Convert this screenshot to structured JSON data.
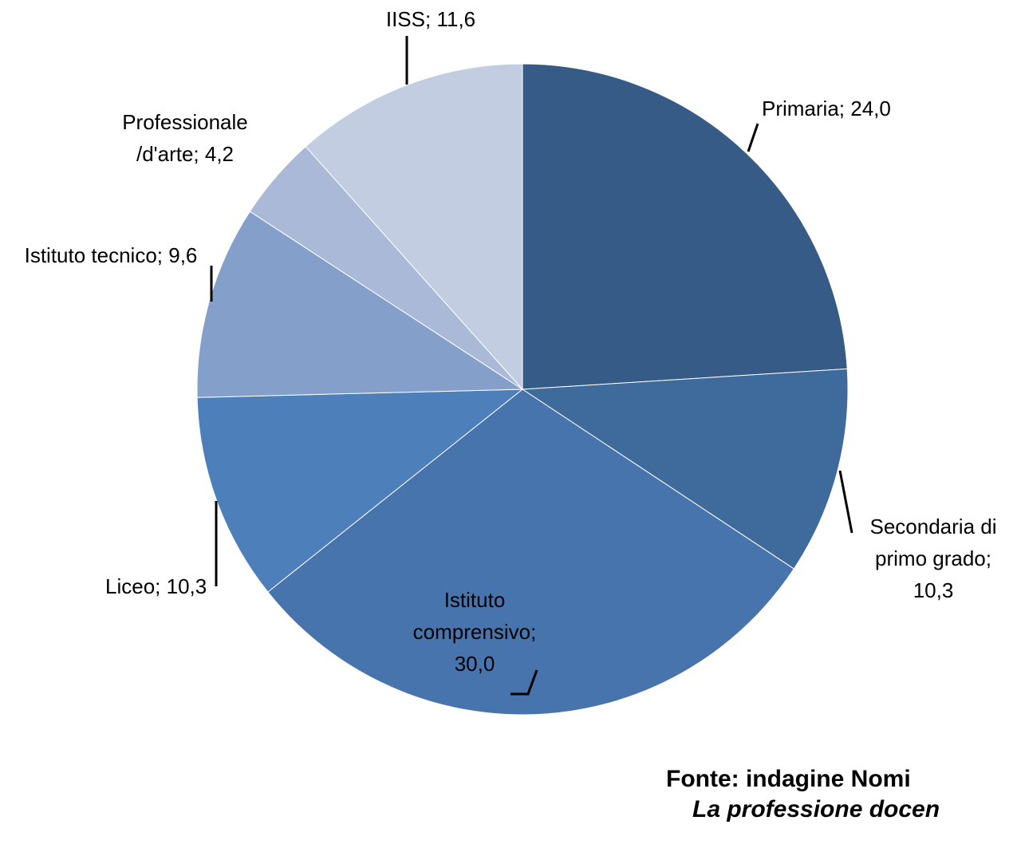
{
  "chart_data": {
    "type": "pie",
    "categories": [
      "Primaria",
      "Secondaria di primo grado",
      "Istituto comprensivo",
      "Liceo",
      "Istituto tecnico",
      "Professionale /d'arte",
      "IISS"
    ],
    "values": [
      24.0,
      10.3,
      30.0,
      10.3,
      9.6,
      4.2,
      11.6
    ],
    "value_labels": [
      "24,0",
      "10,3",
      "30,0",
      "10,3",
      "9,6",
      "4,2",
      "11,6"
    ],
    "label_separator": "; ",
    "colors": [
      "#375b87",
      "#3f6a9c",
      "#4874ad",
      "#4d7fbb",
      "#849fca",
      "#a9b9d7",
      "#c3cde1"
    ],
    "source": [
      "Fonte: indagine Nomi",
      "La professione docen"
    ]
  }
}
